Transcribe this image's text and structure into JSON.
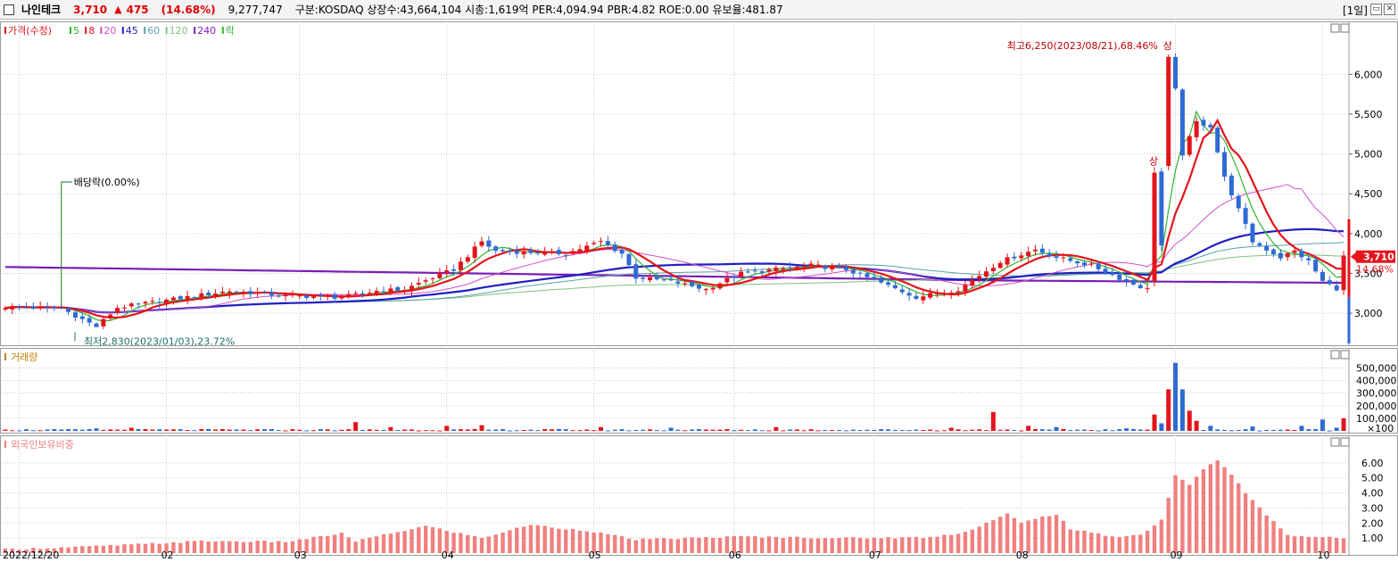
{
  "header": {
    "name": "나인테크",
    "price": "3,710",
    "change_arrow": "▲",
    "change": "475",
    "change_pct": "(14.68%)",
    "volume": "9,277,747",
    "stats": "구분:KOSDAQ 상장수:43,664,104 시총:1,619억 PER:4,094.94 PBR:4.82 ROE:0.00 유보율:481.87",
    "period": "[1일]",
    "restore_icon": "restore-icon",
    "close_icon": "close-icon"
  },
  "colors": {
    "up": "#e3141c",
    "down": "#2e6ad4",
    "ma5": "#2bb52b",
    "ma8": "#e3141c",
    "ma20": "#d04fc8",
    "ma45": "#1f1fc2",
    "ma60": "#5aa0a8",
    "ma120": "#7fc07f",
    "ma240": "#7a1fb5",
    "foreign": "#f08080",
    "grid": "#c8c8c8"
  },
  "chart_data": [
    {
      "type": "candlestick",
      "panel": "price",
      "legend": [
        {
          "label": "가격(수정)",
          "color": "#e3141c"
        },
        {
          "label": "5",
          "color": "#2bb52b"
        },
        {
          "label": "8",
          "color": "#e3141c"
        },
        {
          "label": "20",
          "color": "#d04fc8"
        },
        {
          "label": "45",
          "color": "#1f1fc2"
        },
        {
          "label": "60",
          "color": "#5aa0a8"
        },
        {
          "label": "120",
          "color": "#7fc07f"
        },
        {
          "label": "240",
          "color": "#7a1fb5"
        },
        {
          "label": "락",
          "color": "#2bb52b"
        }
      ],
      "x_labels": [
        "2022/12/20",
        "02",
        "03",
        "04",
        "05",
        "06",
        "07",
        "08",
        "09",
        "10"
      ],
      "y_ticks": [
        "3,000",
        "3,500",
        "4,000",
        "4,500",
        "5,000",
        "5,500",
        "6,000"
      ],
      "ylim": [
        2620,
        6620
      ],
      "keypoints": [
        [
          0,
          3080
        ],
        [
          8,
          3060
        ],
        [
          13,
          2830
        ],
        [
          16,
          3070
        ],
        [
          22,
          3150
        ],
        [
          32,
          3280
        ],
        [
          40,
          3220
        ],
        [
          48,
          3200
        ],
        [
          53,
          3280
        ],
        [
          57,
          3300
        ],
        [
          61,
          3450
        ],
        [
          64,
          3550
        ],
        [
          68,
          3900
        ],
        [
          70,
          3780
        ],
        [
          80,
          3750
        ],
        [
          85,
          3900
        ],
        [
          88,
          3750
        ],
        [
          90,
          3450
        ],
        [
          95,
          3400
        ],
        [
          100,
          3300
        ],
        [
          105,
          3500
        ],
        [
          115,
          3600
        ],
        [
          120,
          3550
        ],
        [
          125,
          3380
        ],
        [
          130,
          3200
        ],
        [
          136,
          3300
        ],
        [
          142,
          3650
        ],
        [
          147,
          3800
        ],
        [
          150,
          3700
        ],
        [
          155,
          3600
        ],
        [
          160,
          3400
        ],
        [
          163,
          3300
        ],
        [
          164,
          4780
        ],
        [
          165,
          3850
        ],
        [
          166,
          6200
        ],
        [
          167,
          5800
        ],
        [
          168,
          5000
        ],
        [
          170,
          5400
        ],
        [
          172,
          5350
        ],
        [
          174,
          4700
        ],
        [
          176,
          4300
        ],
        [
          178,
          3900
        ],
        [
          180,
          3800
        ],
        [
          182,
          3700
        ],
        [
          184,
          3780
        ],
        [
          186,
          3650
        ],
        [
          188,
          3400
        ],
        [
          190,
          3310
        ],
        [
          191,
          3710
        ]
      ],
      "annotations": {
        "high": "최고6,250(2023/08/21),68.46%",
        "low": "최저2,830(2023/01/03),23.72%",
        "dividend": "배당락(0.00%)",
        "limit_up": "상",
        "last_price": "3,710",
        "last_change": "14.68%"
      }
    },
    {
      "type": "bar",
      "panel": "volume",
      "title": "거래량",
      "y_ticks": [
        "100,000",
        "200,000",
        "300,000",
        "400,000",
        "500,000"
      ],
      "unit": "×100",
      "ylim": [
        0,
        560000
      ],
      "values": [
        [
          0,
          10000
        ],
        [
          13,
          20000
        ],
        [
          18,
          25000
        ],
        [
          50,
          70000
        ],
        [
          55,
          30000
        ],
        [
          63,
          40000
        ],
        [
          68,
          45000
        ],
        [
          85,
          30000
        ],
        [
          95,
          25000
        ],
        [
          110,
          30000
        ],
        [
          135,
          25000
        ],
        [
          141,
          150000
        ],
        [
          146,
          40000
        ],
        [
          150,
          30000
        ],
        [
          160,
          20000
        ],
        [
          164,
          130000
        ],
        [
          165,
          60000
        ],
        [
          166,
          330000
        ],
        [
          167,
          540000
        ],
        [
          168,
          330000
        ],
        [
          169,
          160000
        ],
        [
          170,
          80000
        ],
        [
          172,
          40000
        ],
        [
          178,
          35000
        ],
        [
          185,
          40000
        ],
        [
          188,
          90000
        ],
        [
          190,
          25000
        ],
        [
          191,
          100000
        ]
      ]
    },
    {
      "type": "bar",
      "panel": "foreign",
      "title": "외국인보유비중",
      "y_ticks": [
        "1.00",
        "2.00",
        "3.00",
        "4.00",
        "5.00",
        "6.00"
      ],
      "ylim": [
        0,
        7
      ],
      "values": [
        [
          0,
          0.25
        ],
        [
          10,
          0.4
        ],
        [
          20,
          0.6
        ],
        [
          28,
          0.8
        ],
        [
          40,
          0.75
        ],
        [
          48,
          1.3
        ],
        [
          50,
          0.8
        ],
        [
          60,
          1.8
        ],
        [
          68,
          1.0
        ],
        [
          75,
          1.9
        ],
        [
          78,
          1.7
        ],
        [
          83,
          1.5
        ],
        [
          90,
          0.9
        ],
        [
          105,
          1.1
        ],
        [
          120,
          1.0
        ],
        [
          132,
          1.05
        ],
        [
          137,
          1.4
        ],
        [
          140,
          2.0
        ],
        [
          143,
          2.6
        ],
        [
          145,
          2.0
        ],
        [
          148,
          2.4
        ],
        [
          150,
          2.6
        ],
        [
          152,
          1.6
        ],
        [
          158,
          1.1
        ],
        [
          162,
          1.2
        ],
        [
          165,
          2.2
        ],
        [
          167,
          5.2
        ],
        [
          169,
          4.5
        ],
        [
          171,
          5.6
        ],
        [
          173,
          6.2
        ],
        [
          175,
          5.2
        ],
        [
          177,
          4.0
        ],
        [
          179,
          3.0
        ],
        [
          181,
          2.1
        ],
        [
          183,
          1.2
        ],
        [
          186,
          1.1
        ],
        [
          191,
          1.0
        ]
      ]
    }
  ]
}
